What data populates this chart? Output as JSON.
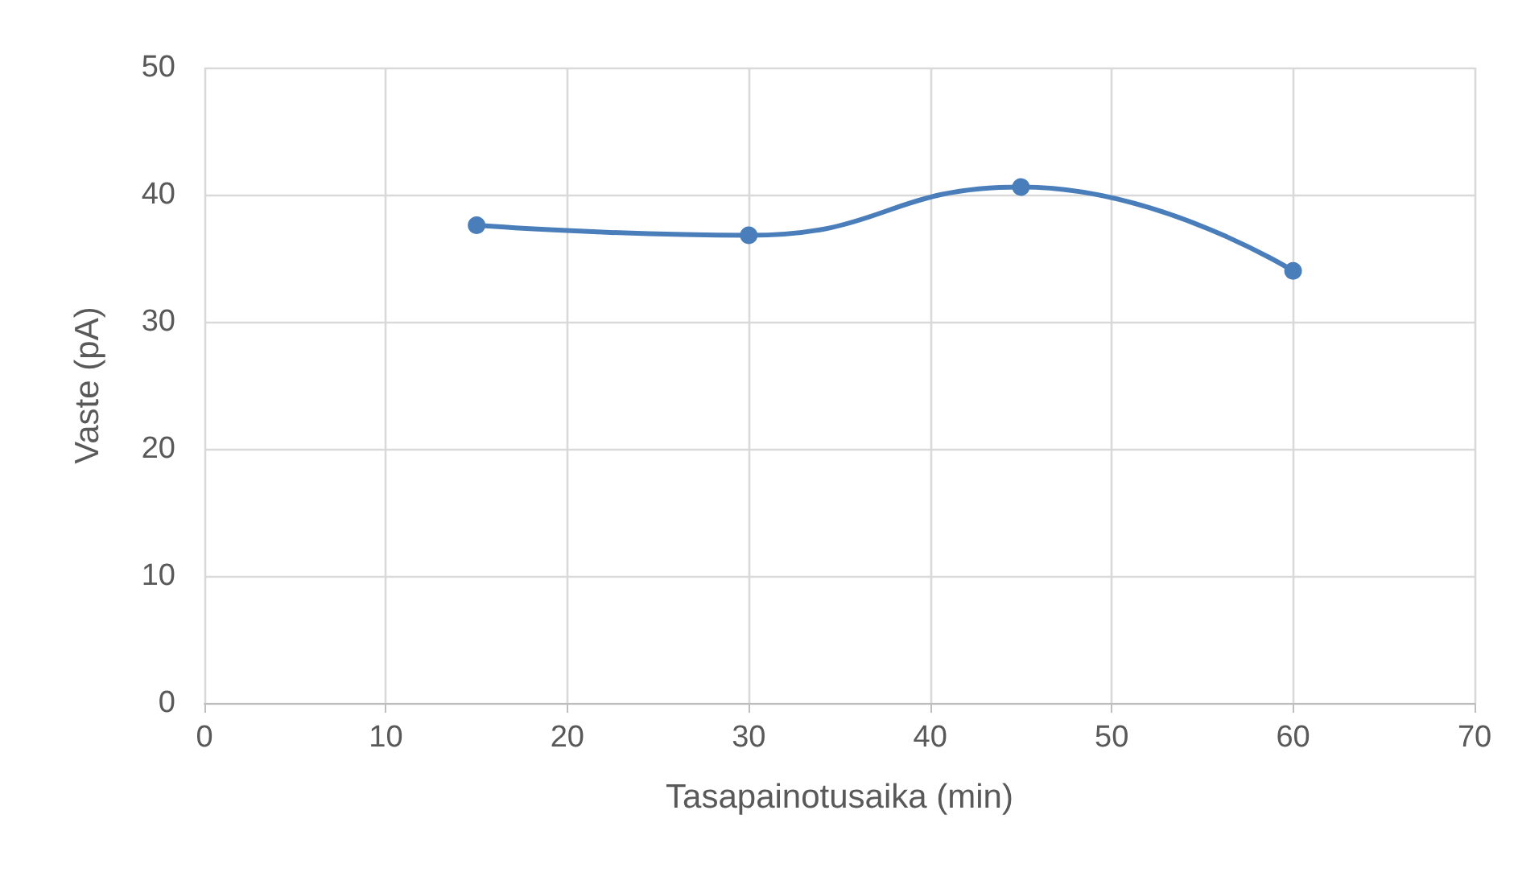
{
  "chart_data": {
    "type": "line",
    "xlabel": "Tasapainotusaika (min)",
    "ylabel": "Vaste (pA)",
    "x": [
      15,
      30,
      45,
      60
    ],
    "series": [
      {
        "color": "#4a7ebb",
        "values": [
          37.6,
          36.8,
          40.6,
          34.0
        ]
      }
    ],
    "xlim": [
      0,
      70
    ],
    "xticks": [
      0,
      10,
      20,
      30,
      40,
      50,
      60,
      70
    ],
    "ylim": [
      0,
      50
    ],
    "yticks": [
      0,
      10,
      20,
      30,
      40,
      50
    ],
    "grid": true,
    "marker": "circle",
    "line_style": "solid"
  }
}
